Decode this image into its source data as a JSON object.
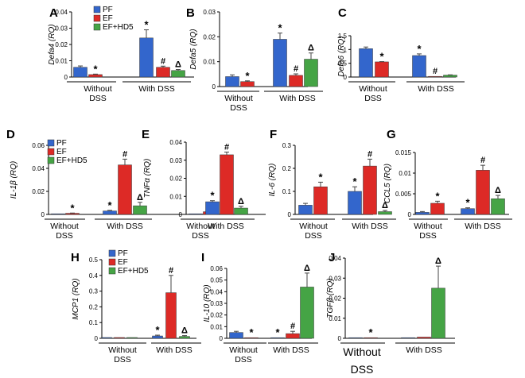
{
  "legend": {
    "items": [
      {
        "label": "PF",
        "color": "#3366cc"
      },
      {
        "label": "EF",
        "color": "#dd2a26"
      },
      {
        "label": "EF+HD5",
        "color": "#45a445"
      }
    ]
  },
  "chart_data": [
    {
      "panel": "A",
      "type": "bar",
      "ylabel": "Defa4 (RQ)",
      "ylim": [
        0,
        0.04
      ],
      "yticks": [
        "0",
        "0.01",
        "0.02",
        "0.03",
        "0.04"
      ],
      "groups": [
        {
          "label": [
            "Without",
            "DSS"
          ],
          "bars": [
            {
              "series": "PF",
              "value": 0.006,
              "err": 0.0008
            },
            {
              "series": "EF",
              "value": 0.0015,
              "err": 0.0003,
              "mark": "*"
            }
          ]
        },
        {
          "label": [
            "With DSS"
          ],
          "bars": [
            {
              "series": "PF",
              "value": 0.024,
              "err": 0.005,
              "mark": "*"
            },
            {
              "series": "EF",
              "value": 0.006,
              "err": 0.0007,
              "mark": "#"
            },
            {
              "series": "EF+HD5",
              "value": 0.004,
              "err": 0.0006,
              "mark": "Δ"
            }
          ]
        }
      ]
    },
    {
      "panel": "B",
      "type": "bar",
      "ylabel": "Defa5 (RQ)",
      "ylim": [
        0,
        0.03
      ],
      "yticks": [
        "0",
        "0.01",
        "0.02",
        "0.03"
      ],
      "groups": [
        {
          "label": [
            "Without",
            "DSS"
          ],
          "bars": [
            {
              "series": "PF",
              "value": 0.004,
              "err": 0.0007
            },
            {
              "series": "EF",
              "value": 0.002,
              "err": 0.0003,
              "mark": "*"
            }
          ]
        },
        {
          "label": [
            "With DSS"
          ],
          "bars": [
            {
              "series": "PF",
              "value": 0.019,
              "err": 0.0025,
              "mark": "*"
            },
            {
              "series": "EF",
              "value": 0.0045,
              "err": 0.0006,
              "mark": "#"
            },
            {
              "series": "EF+HD5",
              "value": 0.011,
              "err": 0.0025,
              "mark": "Δ"
            }
          ]
        }
      ]
    },
    {
      "panel": "C",
      "type": "bar",
      "ylabel": "Defa6 (RQ)",
      "ylim": [
        0,
        1.5
      ],
      "yticks": [
        "0",
        "0.5",
        "1",
        "1.5"
      ],
      "groups": [
        {
          "label": [
            "Without",
            "DSS"
          ],
          "bars": [
            {
              "series": "PF",
              "value": 1.03,
              "err": 0.06
            },
            {
              "series": "EF",
              "value": 0.55,
              "err": 0.01,
              "mark": "*"
            }
          ]
        },
        {
          "label": [
            "With DSS"
          ],
          "bars": [
            {
              "series": "PF",
              "value": 0.78,
              "err": 0.06,
              "mark": "*"
            },
            {
              "series": "EF",
              "value": 0.005,
              "err": 0,
              "mark": "#"
            },
            {
              "series": "EF+HD5",
              "value": 0.07,
              "err": 0.01
            }
          ]
        }
      ]
    },
    {
      "panel": "D",
      "type": "bar",
      "ylabel": "IL-1β (RQ)",
      "ylim": [
        0,
        0.06
      ],
      "yticks": [
        "0",
        "0.02",
        "0.04",
        "0.06"
      ],
      "groups": [
        {
          "label": [
            "Without",
            "DSS"
          ],
          "bars": [
            {
              "series": "PF",
              "value": 0.0003,
              "err": 0
            },
            {
              "series": "EF",
              "value": 0.001,
              "err": 0.0002,
              "mark": "*"
            }
          ]
        },
        {
          "label": [
            "With DSS"
          ],
          "bars": [
            {
              "series": "PF",
              "value": 0.003,
              "err": 0.0005,
              "mark": "*"
            },
            {
              "series": "EF",
              "value": 0.043,
              "err": 0.005,
              "mark": "#"
            },
            {
              "series": "EF+HD5",
              "value": 0.0075,
              "err": 0.003,
              "mark": "Δ"
            }
          ]
        }
      ]
    },
    {
      "panel": "E",
      "type": "bar",
      "ylabel": "TNFα (RQ)",
      "ylim": [
        0,
        0.04
      ],
      "yticks": [
        "0",
        "0.01",
        "0.02",
        "0.03",
        "0.04"
      ],
      "groups": [
        {
          "label": [
            "Without",
            "DSS"
          ],
          "bars": [
            {
              "series": "PF",
              "value": 0.0003,
              "err": 0
            },
            {
              "series": "EF",
              "value": 0.0015,
              "err": 0.0002,
              "mark": "*"
            }
          ]
        },
        {
          "label": [
            "With DSS"
          ],
          "bars": [
            {
              "series": "PF",
              "value": 0.007,
              "err": 0.0006,
              "mark": "*"
            },
            {
              "series": "EF",
              "value": 0.033,
              "err": 0.0015,
              "mark": "#"
            },
            {
              "series": "EF+HD5",
              "value": 0.0035,
              "err": 0.001,
              "mark": "Δ"
            }
          ]
        }
      ]
    },
    {
      "panel": "F",
      "type": "bar",
      "ylabel": "IL-6 (RQ)",
      "ylim": [
        0,
        0.3
      ],
      "yticks": [
        "0",
        "0.1",
        "0.2",
        "0.3"
      ],
      "groups": [
        {
          "label": [
            "Without",
            "DSS"
          ],
          "bars": [
            {
              "series": "PF",
              "value": 0.04,
              "err": 0.008
            },
            {
              "series": "EF",
              "value": 0.12,
              "err": 0.02,
              "mark": "*"
            }
          ]
        },
        {
          "label": [
            "With DSS"
          ],
          "bars": [
            {
              "series": "PF",
              "value": 0.1,
              "err": 0.02,
              "mark": "*"
            },
            {
              "series": "EF",
              "value": 0.21,
              "err": 0.03,
              "mark": "#"
            },
            {
              "series": "EF+HD5",
              "value": 0.012,
              "err": 0.005,
              "mark": "Δ"
            }
          ]
        }
      ]
    },
    {
      "panel": "G",
      "type": "bar",
      "ylabel": "CCL5 (RQ)",
      "ylim": [
        0,
        0.015
      ],
      "yticks": [
        "0",
        "0.005",
        "0.01",
        "0.015"
      ],
      "groups": [
        {
          "label": [
            "Without",
            "DSS"
          ],
          "bars": [
            {
              "series": "PF",
              "value": 0.0005,
              "err": 0.0002
            },
            {
              "series": "EF",
              "value": 0.0027,
              "err": 0.0005,
              "mark": "*"
            }
          ]
        },
        {
          "label": [
            "With DSS"
          ],
          "bars": [
            {
              "series": "PF",
              "value": 0.0014,
              "err": 0.0002,
              "mark": "*"
            },
            {
              "series": "EF",
              "value": 0.0107,
              "err": 0.0012,
              "mark": "#"
            },
            {
              "series": "EF+HD5",
              "value": 0.0038,
              "err": 0.0008,
              "mark": "Δ"
            }
          ]
        }
      ]
    },
    {
      "panel": "H",
      "type": "bar",
      "ylabel": "MCP1 (RQ)",
      "ylim": [
        0,
        0.5
      ],
      "yticks": [
        "0",
        "0.1",
        "0.2",
        "0.3",
        "0.4",
        "0.5"
      ],
      "groups": [
        {
          "label": [
            "Without",
            "DSS"
          ],
          "bars": [
            {
              "series": "PF",
              "value": 0.005,
              "err": 0
            },
            {
              "series": "EF",
              "value": 0.005,
              "err": 0
            },
            {
              "series": "EF+HD5",
              "value": 0.005,
              "err": 0
            }
          ]
        },
        {
          "label": [
            "With DSS"
          ],
          "bars": [
            {
              "series": "PF",
              "value": 0.015,
              "err": 0.005,
              "mark": "*"
            },
            {
              "series": "EF",
              "value": 0.29,
              "err": 0.11,
              "mark": "#"
            },
            {
              "series": "EF+HD5",
              "value": 0.012,
              "err": 0.005,
              "mark": "Δ"
            }
          ]
        }
      ]
    },
    {
      "panel": "I",
      "type": "bar",
      "ylabel": "IL-10 (RQ)",
      "ylim": [
        0,
        0.06
      ],
      "yticks": [
        "0",
        "0.01",
        "0.02",
        "0.03",
        "0.04",
        "0.05",
        "0.06"
      ],
      "groups": [
        {
          "label": [
            "Without",
            "DSS"
          ],
          "bars": [
            {
              "series": "PF",
              "value": 0.005,
              "err": 0.001
            },
            {
              "series": "EF",
              "value": 0.0002,
              "err": 0,
              "mark": "*"
            }
          ]
        },
        {
          "label": [
            "With DSS"
          ],
          "bars": [
            {
              "series": "PF",
              "value": 0.0005,
              "err": 0,
              "mark": "*"
            },
            {
              "series": "EF",
              "value": 0.004,
              "err": 0.002,
              "mark": "#"
            },
            {
              "series": "EF+HD5",
              "value": 0.044,
              "err": 0.012,
              "mark": "Δ"
            }
          ]
        }
      ]
    },
    {
      "panel": "J",
      "type": "bar",
      "ylabel": "TGFβ (RQ)",
      "ylim": [
        0,
        0.04
      ],
      "yticks": [
        "0",
        "0.01",
        "0.02",
        "0.03",
        "0.04"
      ],
      "groups": [
        {
          "label": [
            "Without",
            "DSS"
          ],
          "bars": [
            {
              "series": "PF",
              "value": 0.0002,
              "err": 0
            },
            {
              "series": "EF",
              "value": 0.0002,
              "err": 0,
              "mark": "*"
            }
          ]
        },
        {
          "label": [
            "With DSS"
          ],
          "bars": [
            {
              "series": "PF",
              "value": 0.0003,
              "err": 0
            },
            {
              "series": "EF",
              "value": 0.0006,
              "err": 0
            },
            {
              "series": "EF+HD5",
              "value": 0.025,
              "err": 0.011,
              "mark": "Δ"
            }
          ]
        }
      ]
    }
  ]
}
